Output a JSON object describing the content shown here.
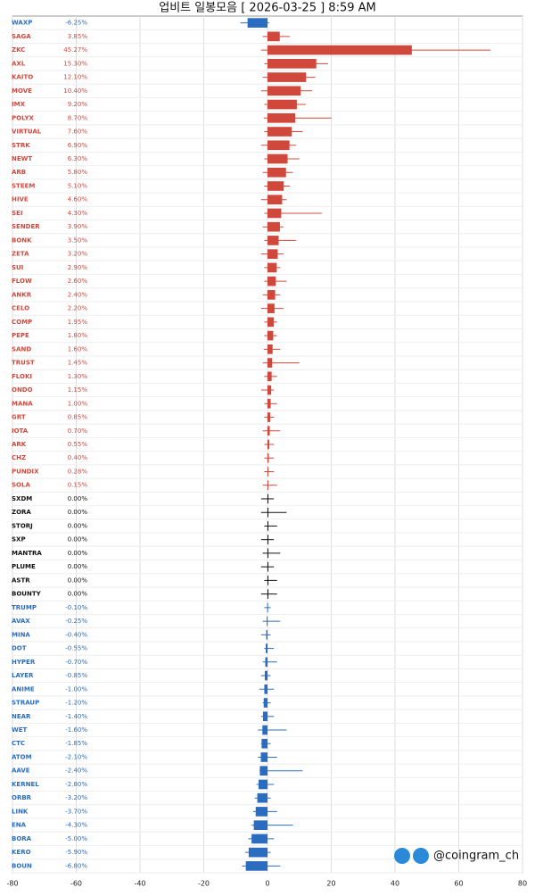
{
  "chart_data": {
    "type": "candle-h",
    "title": "업비트 일봉모음 [ 2026-03-25 ]  8:59 AM",
    "watermark": "@coingram_ch",
    "xlim": [
      -80,
      80
    ],
    "xticks": [
      -80,
      -60,
      -40,
      -20,
      0,
      20,
      40,
      60,
      80
    ],
    "grid": true,
    "colors": {
      "up": "#d0483c",
      "flat": "#111111",
      "down": "#2a6cc0"
    },
    "categories": [
      "WAXP",
      "SAGA",
      "ZKC",
      "AXL",
      "KAITO",
      "MOVE",
      "IMX",
      "POLYX",
      "VIRTUAL",
      "STRK",
      "NEWT",
      "ARB",
      "STEEM",
      "HIVE",
      "SEI",
      "SENDER",
      "BONK",
      "ZETA",
      "SUI",
      "FLOW",
      "ANKR",
      "CELO",
      "COMP",
      "PEPE",
      "SAND",
      "TRUST",
      "FLOKI",
      "ONDO",
      "MANA",
      "GRT",
      "IOTA",
      "ARK",
      "CHZ",
      "PUNDIX",
      "SOLA",
      "SXDM",
      "ZORA",
      "STORJ",
      "SXP",
      "MANTRA",
      "PLUME",
      "ASTR",
      "BOUNTY",
      "TRUMP",
      "AVAX",
      "MINA",
      "DOT",
      "HYPER",
      "LAYER",
      "ANIME",
      "STRAUP",
      "NEAR",
      "WET",
      "CTC",
      "ATOM",
      "AAVE",
      "KERNEL",
      "ORBR",
      "LINK",
      "ENA",
      "BORA",
      "KERO",
      "BOUN"
    ],
    "values": [
      -6.25,
      3.85,
      45.27,
      15.3,
      12.1,
      10.4,
      9.2,
      8.7,
      7.6,
      6.9,
      6.3,
      5.8,
      5.1,
      4.6,
      4.3,
      3.9,
      3.5,
      3.2,
      2.9,
      2.6,
      2.4,
      2.2,
      1.95,
      1.8,
      1.6,
      1.45,
      1.3,
      1.15,
      1.0,
      0.85,
      0.7,
      0.55,
      0.4,
      0.28,
      0.15,
      0,
      0,
      0,
      0,
      0,
      0,
      0,
      0,
      -0.1,
      -0.25,
      -0.4,
      -0.55,
      -0.7,
      -0.85,
      -1.0,
      -1.2,
      -1.4,
      -1.6,
      -1.85,
      -2.1,
      -2.4,
      -2.8,
      -3.2,
      -3.7,
      -4.3,
      -5.0,
      -5.9,
      -6.8
    ],
    "value_labels": [
      "-6.25%",
      "3.85%",
      "45.27%",
      "15.30%",
      "12.10%",
      "10.40%",
      "9.20%",
      "8.70%",
      "7.60%",
      "6.90%",
      "6.30%",
      "5.80%",
      "5.10%",
      "4.60%",
      "4.30%",
      "3.90%",
      "3.50%",
      "3.20%",
      "2.90%",
      "2.60%",
      "2.40%",
      "2.20%",
      "1.95%",
      "1.80%",
      "1.60%",
      "1.45%",
      "1.30%",
      "1.15%",
      "1.00%",
      "0.85%",
      "0.70%",
      "0.55%",
      "0.40%",
      "0.28%",
      "0.15%",
      "0.00%",
      "0.00%",
      "0.00%",
      "0.00%",
      "0.00%",
      "0.00%",
      "0.00%",
      "0.00%",
      "-0.10%",
      "-0.25%",
      "-0.40%",
      "-0.55%",
      "-0.70%",
      "-0.85%",
      "-1.00%",
      "-1.20%",
      "-1.40%",
      "-1.60%",
      "-1.85%",
      "-2.10%",
      "-2.40%",
      "-2.80%",
      "-3.20%",
      "-3.70%",
      "-4.30%",
      "-5.00%",
      "-5.90%",
      "-6.80%"
    ],
    "lows": [
      -8.5,
      -1.5,
      -2,
      -1,
      -1.5,
      -2,
      -1,
      -1.2,
      -1,
      -2,
      -1,
      -1.5,
      -1,
      -2,
      -1,
      -1.5,
      -1,
      -2,
      -1,
      -1,
      -1.5,
      -2,
      -1,
      -1,
      -1.2,
      -1.5,
      -1,
      -2,
      -1,
      -1,
      -1.5,
      -1,
      -1,
      -1,
      -1.5,
      -2,
      -2,
      -1,
      -2,
      -1.5,
      -2,
      -1,
      -2,
      -1,
      -1.5,
      -2,
      -1,
      -1.5,
      -2,
      -2.5,
      -1.5,
      -2,
      -3,
      -2,
      -3,
      -2.5,
      -3.5,
      -4,
      -4.5,
      -5,
      -6,
      -7,
      -8
    ],
    "highs": [
      0.5,
      7,
      70,
      19,
      15,
      14,
      12,
      20,
      11,
      9,
      10,
      8,
      7,
      6,
      17,
      5,
      9,
      5,
      4,
      6,
      4,
      5,
      3,
      3,
      4,
      10,
      3,
      2,
      3,
      2,
      4,
      2,
      2,
      2,
      3,
      2,
      6,
      3,
      2,
      4,
      2,
      3,
      3,
      1,
      4,
      1,
      2,
      3,
      1,
      2,
      1,
      2,
      6,
      1,
      3,
      11,
      2,
      1,
      3,
      8,
      2,
      1,
      4
    ]
  }
}
